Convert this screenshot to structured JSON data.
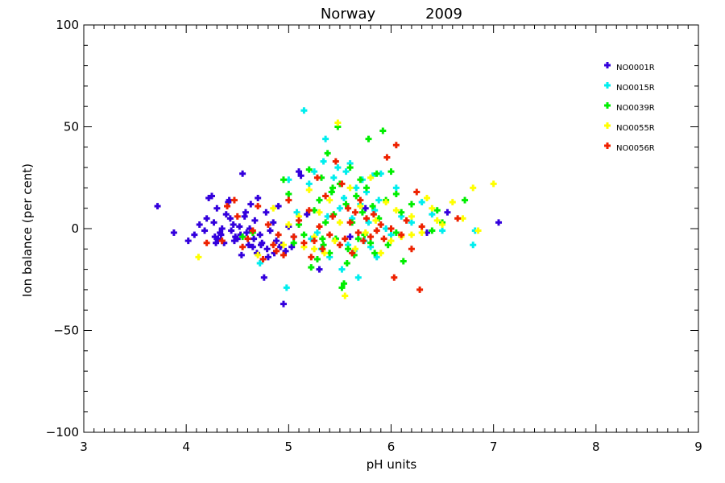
{
  "chart_data": {
    "type": "scatter",
    "title": "Norway",
    "title_year": "2009",
    "xlabel": "pH units",
    "ylabel": "Ion balance (per cent)",
    "xlim": [
      3,
      9
    ],
    "ylim": [
      -100,
      100
    ],
    "xticks": [
      3,
      4,
      5,
      6,
      7,
      8,
      9
    ],
    "yticks": [
      -100,
      -50,
      0,
      50,
      100
    ],
    "xtick_labels": [
      "3",
      "4",
      "5",
      "6",
      "7",
      "8",
      "9"
    ],
    "ytick_labels": [
      "−100",
      "−50",
      "0",
      "50",
      "100"
    ],
    "grid": false,
    "legend_placement": "top-right",
    "series": [
      {
        "name": "NO0001R",
        "color": "#3300dd",
        "points": [
          [
            3.72,
            11
          ],
          [
            3.88,
            -2
          ],
          [
            4.02,
            -6
          ],
          [
            4.08,
            -3
          ],
          [
            4.13,
            2
          ],
          [
            4.18,
            -1
          ],
          [
            4.2,
            5
          ],
          [
            4.22,
            15
          ],
          [
            4.25,
            16
          ],
          [
            4.27,
            3
          ],
          [
            4.28,
            -4
          ],
          [
            4.3,
            10
          ],
          [
            4.31,
            -5
          ],
          [
            4.33,
            -2
          ],
          [
            4.35,
            0
          ],
          [
            4.37,
            -7
          ],
          [
            4.39,
            7
          ],
          [
            4.41,
            13
          ],
          [
            4.42,
            14
          ],
          [
            4.44,
            -1
          ],
          [
            4.46,
            2
          ],
          [
            4.48,
            -4
          ],
          [
            4.5,
            -5
          ],
          [
            4.52,
            1
          ],
          [
            4.54,
            -13
          ],
          [
            4.55,
            27
          ],
          [
            4.57,
            6
          ],
          [
            4.59,
            -2
          ],
          [
            4.61,
            -8
          ],
          [
            4.63,
            12
          ],
          [
            4.65,
            -9
          ],
          [
            4.67,
            4
          ],
          [
            4.69,
            -12
          ],
          [
            4.7,
            15
          ],
          [
            4.72,
            -3
          ],
          [
            4.74,
            -7
          ],
          [
            4.76,
            -24
          ],
          [
            4.78,
            8
          ],
          [
            4.8,
            -14
          ],
          [
            4.82,
            -1
          ],
          [
            4.85,
            3
          ],
          [
            4.88,
            -6
          ],
          [
            4.9,
            11
          ],
          [
            4.92,
            -9
          ],
          [
            4.95,
            -37
          ],
          [
            4.97,
            -11
          ],
          [
            5.0,
            1
          ],
          [
            5.05,
            -4
          ],
          [
            5.1,
            28
          ],
          [
            5.12,
            26
          ],
          [
            4.29,
            -7
          ],
          [
            4.34,
            -3
          ],
          [
            4.43,
            5
          ],
          [
            4.47,
            -6
          ],
          [
            4.53,
            -3
          ],
          [
            4.58,
            8
          ],
          [
            4.62,
            0
          ],
          [
            4.66,
            -5
          ],
          [
            4.73,
            -8
          ],
          [
            4.79,
            -10
          ],
          [
            4.86,
            -12
          ],
          [
            4.93,
            -8
          ],
          [
            5.03,
            -9
          ],
          [
            5.18,
            7
          ],
          [
            5.3,
            -20
          ],
          [
            5.6,
            -4
          ],
          [
            5.75,
            10
          ],
          [
            6.35,
            -2
          ],
          [
            6.55,
            8
          ],
          [
            7.05,
            3
          ]
        ]
      },
      {
        "name": "NO0015R",
        "color": "#00eeee",
        "points": [
          [
            4.72,
            -17
          ],
          [
            4.98,
            -29
          ],
          [
            5.0,
            24
          ],
          [
            5.08,
            8
          ],
          [
            5.15,
            58
          ],
          [
            5.2,
            22
          ],
          [
            5.22,
            -5
          ],
          [
            5.25,
            28
          ],
          [
            5.28,
            -2
          ],
          [
            5.3,
            14
          ],
          [
            5.32,
            -10
          ],
          [
            5.34,
            33
          ],
          [
            5.36,
            44
          ],
          [
            5.38,
            6
          ],
          [
            5.4,
            -14
          ],
          [
            5.42,
            18
          ],
          [
            5.44,
            25
          ],
          [
            5.46,
            -5
          ],
          [
            5.48,
            30
          ],
          [
            5.5,
            10
          ],
          [
            5.52,
            -20
          ],
          [
            5.54,
            15
          ],
          [
            5.56,
            28
          ],
          [
            5.58,
            -8
          ],
          [
            5.6,
            32
          ],
          [
            5.62,
            5
          ],
          [
            5.64,
            -11
          ],
          [
            5.66,
            20
          ],
          [
            5.68,
            -24
          ],
          [
            5.7,
            12
          ],
          [
            5.72,
            24
          ],
          [
            5.74,
            -6
          ],
          [
            5.76,
            18
          ],
          [
            5.78,
            3
          ],
          [
            5.8,
            -9
          ],
          [
            5.82,
            26
          ],
          [
            5.84,
            9
          ],
          [
            5.86,
            -14
          ],
          [
            5.88,
            14
          ],
          [
            5.9,
            27
          ],
          [
            5.95,
            0
          ],
          [
            6.0,
            -3
          ],
          [
            6.05,
            20
          ],
          [
            6.1,
            6
          ],
          [
            6.2,
            3
          ],
          [
            6.3,
            13
          ],
          [
            6.4,
            7
          ],
          [
            6.5,
            -1
          ],
          [
            6.8,
            -8
          ],
          [
            6.82,
            -1
          ]
        ]
      },
      {
        "name": "NO0039R",
        "color": "#00ee00",
        "points": [
          [
            4.55,
            -4
          ],
          [
            4.65,
            -2
          ],
          [
            4.95,
            24
          ],
          [
            5.0,
            17
          ],
          [
            5.05,
            -7
          ],
          [
            5.1,
            2
          ],
          [
            5.15,
            -3
          ],
          [
            5.2,
            29
          ],
          [
            5.22,
            -19
          ],
          [
            5.25,
            9
          ],
          [
            5.28,
            -15
          ],
          [
            5.3,
            14
          ],
          [
            5.32,
            25
          ],
          [
            5.34,
            -8
          ],
          [
            5.36,
            3
          ],
          [
            5.38,
            37
          ],
          [
            5.4,
            -12
          ],
          [
            5.42,
            18
          ],
          [
            5.44,
            7
          ],
          [
            5.46,
            -5
          ],
          [
            5.48,
            50
          ],
          [
            5.5,
            22
          ],
          [
            5.52,
            -29
          ],
          [
            5.54,
            -27
          ],
          [
            5.56,
            12
          ],
          [
            5.58,
            -10
          ],
          [
            5.6,
            30
          ],
          [
            5.62,
            3
          ],
          [
            5.64,
            -13
          ],
          [
            5.66,
            16
          ],
          [
            5.68,
            -5
          ],
          [
            5.7,
            24
          ],
          [
            5.72,
            8
          ],
          [
            5.74,
            -3
          ],
          [
            5.76,
            20
          ],
          [
            5.78,
            44
          ],
          [
            5.8,
            -7
          ],
          [
            5.82,
            11
          ],
          [
            5.84,
            -12
          ],
          [
            5.86,
            27
          ],
          [
            5.88,
            5
          ],
          [
            5.92,
            48
          ],
          [
            5.95,
            14
          ],
          [
            6.0,
            28
          ],
          [
            6.05,
            -2
          ],
          [
            6.1,
            8
          ],
          [
            6.12,
            -16
          ],
          [
            6.2,
            12
          ],
          [
            6.4,
            -1
          ],
          [
            6.5,
            3
          ],
          [
            6.72,
            14
          ],
          [
            6.45,
            9
          ],
          [
            6.05,
            17
          ],
          [
            5.97,
            -8
          ],
          [
            5.57,
            -17
          ],
          [
            5.43,
            20
          ],
          [
            5.33,
            -5
          ]
        ]
      },
      {
        "name": "NO0055R",
        "color": "#ffff00",
        "points": [
          [
            4.12,
            -14
          ],
          [
            4.7,
            -13
          ],
          [
            4.95,
            -8
          ],
          [
            5.0,
            2
          ],
          [
            5.1,
            6
          ],
          [
            5.15,
            -9
          ],
          [
            5.2,
            19
          ],
          [
            5.25,
            -4
          ],
          [
            5.3,
            8
          ],
          [
            5.35,
            -12
          ],
          [
            5.4,
            14
          ],
          [
            5.45,
            -6
          ],
          [
            5.48,
            52
          ],
          [
            5.5,
            3
          ],
          [
            5.55,
            -33
          ],
          [
            5.6,
            20
          ],
          [
            5.65,
            -10
          ],
          [
            5.7,
            11
          ],
          [
            5.75,
            -2
          ],
          [
            5.8,
            25
          ],
          [
            5.85,
            4
          ],
          [
            5.9,
            -12
          ],
          [
            5.95,
            13
          ],
          [
            6.0,
            -6
          ],
          [
            6.05,
            9
          ],
          [
            6.1,
            -4
          ],
          [
            6.2,
            6
          ],
          [
            6.3,
            -2
          ],
          [
            6.35,
            15
          ],
          [
            6.4,
            10
          ],
          [
            6.45,
            4
          ],
          [
            6.5,
            2
          ],
          [
            6.6,
            13
          ],
          [
            6.7,
            5
          ],
          [
            6.8,
            20
          ],
          [
            6.85,
            -1
          ],
          [
            7.0,
            22
          ],
          [
            6.2,
            -3
          ],
          [
            5.25,
            -10
          ],
          [
            4.85,
            10
          ]
        ]
      },
      {
        "name": "NO0056R",
        "color": "#ee2200",
        "points": [
          [
            4.2,
            -7
          ],
          [
            4.35,
            -6
          ],
          [
            4.4,
            11
          ],
          [
            4.47,
            14
          ],
          [
            4.5,
            6
          ],
          [
            4.6,
            -5
          ],
          [
            4.65,
            -1
          ],
          [
            4.7,
            11
          ],
          [
            4.75,
            -15
          ],
          [
            4.8,
            2
          ],
          [
            4.85,
            -8
          ],
          [
            4.9,
            -3
          ],
          [
            4.95,
            -13
          ],
          [
            5.0,
            14
          ],
          [
            5.05,
            -4
          ],
          [
            5.1,
            4
          ],
          [
            5.15,
            -7
          ],
          [
            5.2,
            9
          ],
          [
            5.25,
            -6
          ],
          [
            5.28,
            25
          ],
          [
            5.3,
            1
          ],
          [
            5.33,
            -10
          ],
          [
            5.36,
            16
          ],
          [
            5.4,
            -3
          ],
          [
            5.43,
            6
          ],
          [
            5.46,
            33
          ],
          [
            5.5,
            -8
          ],
          [
            5.52,
            22
          ],
          [
            5.55,
            -5
          ],
          [
            5.58,
            10
          ],
          [
            5.6,
            3
          ],
          [
            5.62,
            -12
          ],
          [
            5.65,
            8
          ],
          [
            5.68,
            -2
          ],
          [
            5.7,
            14
          ],
          [
            5.73,
            -6
          ],
          [
            5.76,
            5
          ],
          [
            5.8,
            -4
          ],
          [
            5.83,
            7
          ],
          [
            5.86,
            -1
          ],
          [
            5.9,
            2
          ],
          [
            5.93,
            -5
          ],
          [
            5.96,
            35
          ],
          [
            6.0,
            0
          ],
          [
            6.03,
            -24
          ],
          [
            6.05,
            41
          ],
          [
            6.1,
            -3
          ],
          [
            6.15,
            4
          ],
          [
            6.2,
            -10
          ],
          [
            6.25,
            18
          ],
          [
            6.28,
            -30
          ],
          [
            6.3,
            1
          ],
          [
            6.65,
            5
          ],
          [
            4.55,
            -9
          ],
          [
            4.88,
            -11
          ],
          [
            5.22,
            -14
          ]
        ]
      }
    ]
  }
}
